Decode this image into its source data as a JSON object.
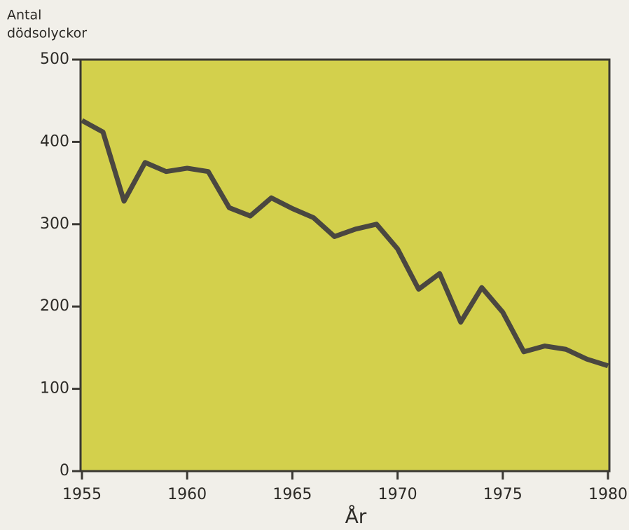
{
  "chart_data": {
    "type": "line",
    "ylabel": [
      "Antal",
      "dödsolyckor"
    ],
    "xlabel": "År",
    "x": [
      1955,
      1956,
      1957,
      1958,
      1959,
      1960,
      1961,
      1962,
      1963,
      1964,
      1965,
      1966,
      1967,
      1968,
      1969,
      1970,
      1971,
      1972,
      1973,
      1974,
      1975,
      1976,
      1977,
      1978,
      1979,
      1980
    ],
    "values": [
      426,
      412,
      328,
      375,
      364,
      368,
      364,
      320,
      310,
      332,
      319,
      308,
      285,
      294,
      300,
      270,
      221,
      240,
      181,
      223,
      193,
      145,
      152,
      148,
      136,
      128
    ],
    "color": "#4a4740",
    "background": "#d3d04c",
    "xlim": [
      1955,
      1980
    ],
    "xticks": [
      1955,
      1960,
      1965,
      1970,
      1975,
      1980
    ],
    "ylim": [
      0,
      500
    ],
    "yticks": [
      0,
      100,
      200,
      300,
      400,
      500
    ],
    "grid": false
  }
}
